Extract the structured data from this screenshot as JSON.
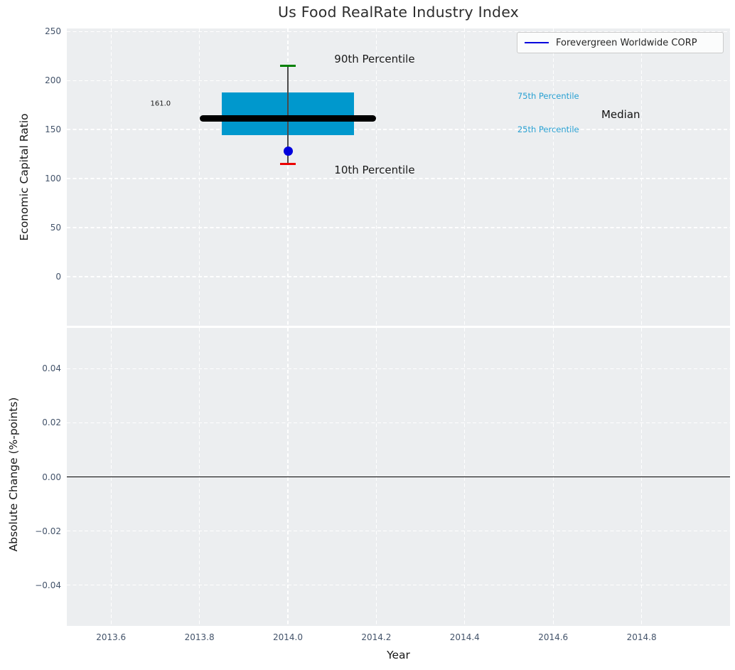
{
  "colors": {
    "axes_background": "#eceef0",
    "figure_background": "#ffffff",
    "grid": "#ffffff",
    "tick_label": "#43536a",
    "box_fill": "#0098cd",
    "percentile_label": "#28a0d2",
    "company_blue": "#0000dd",
    "p90_green": "#008000",
    "p10_red": "#ec0000",
    "median_black": "#000000",
    "whisker_gray": "#4a4a4a",
    "annotation_text": "#1a1a1a"
  },
  "chart_data": [
    {
      "type": "box",
      "title": "Us Food RealRate Industry Index",
      "ylabel": "Economic Capital Ratio",
      "xlabel": "",
      "xlim": [
        2013.5,
        2015.0
      ],
      "ylim": [
        -50,
        253
      ],
      "xticks": [
        2013.6,
        2013.8,
        2014.0,
        2014.2,
        2014.4,
        2014.6,
        2014.8
      ],
      "yticks": [
        0,
        50,
        100,
        150,
        200,
        250
      ],
      "grid": true,
      "legend": {
        "label": "Forevergreen Worldwide CORP",
        "position": "top-right"
      },
      "series": {
        "name": "Forevergreen Worldwide CORP",
        "x": 2014.0,
        "p90": 215,
        "p75": 188,
        "median": 161.0,
        "p25": 144,
        "p10": 115,
        "company_value": 128,
        "box_span": [
          2013.85,
          2014.15
        ],
        "median_span": [
          2013.8,
          2014.2
        ]
      },
      "annotations": [
        {
          "text": "90th Percentile",
          "x": 2014.105,
          "y": 222,
          "ha": "left",
          "kind": "lg",
          "color": "#1a1a1a"
        },
        {
          "text": "10th Percentile",
          "x": 2014.105,
          "y": 109,
          "ha": "left",
          "kind": "lg",
          "color": "#1a1a1a"
        },
        {
          "text": "161.0",
          "x": 2013.712,
          "y": 176,
          "ha": "center",
          "kind": "sm",
          "color": "#1a1a1a"
        },
        {
          "text": "75th Percentile",
          "x": 2014.519,
          "y": 184,
          "ha": "left",
          "kind": "cyan",
          "color": "#28a0d2"
        },
        {
          "text": "25th Percentile",
          "x": 2014.519,
          "y": 150,
          "ha": "left",
          "kind": "cyan",
          "color": "#28a0d2"
        },
        {
          "text": "Median",
          "x": 2014.709,
          "y": 165,
          "ha": "left",
          "kind": "lg",
          "color": "#111111"
        }
      ]
    },
    {
      "type": "line",
      "title": "",
      "ylabel": "Absolute Change (%-points)",
      "xlabel": "Year",
      "xlim": [
        2013.5,
        2015.0
      ],
      "ylim": [
        -0.055,
        0.055
      ],
      "xticks": [
        2013.6,
        2013.8,
        2014.0,
        2014.2,
        2014.4,
        2014.6,
        2014.8
      ],
      "yticks": [
        -0.04,
        -0.02,
        0.0,
        0.02,
        0.04
      ],
      "grid": true,
      "zero_line": 0.0,
      "series": []
    }
  ]
}
